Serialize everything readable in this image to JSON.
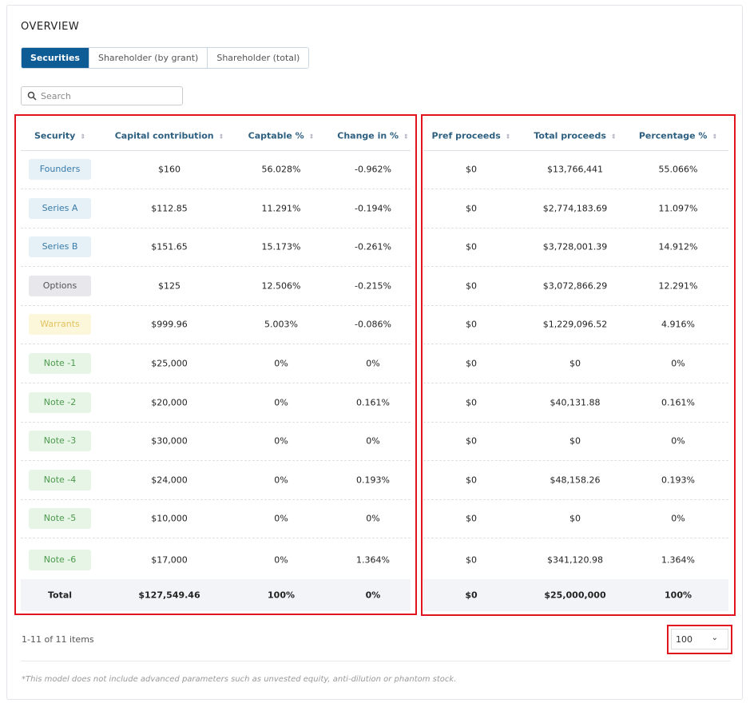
{
  "title": "OVERVIEW",
  "tabs": [
    "Securities",
    "Shareholder (by grant)",
    "Shareholder (total)"
  ],
  "search_placeholder": "Search",
  "table": {
    "columns": [
      "Security",
      "Capital contribution",
      "Captable %",
      "Change in %",
      "Pref proceeds",
      "Total proceeds",
      "Percentage %"
    ],
    "rows": [
      [
        "Founders",
        "$160",
        "56.028%",
        "-0.962%",
        "$0",
        "$13,766,441",
        "55.066%"
      ],
      [
        "Series A",
        "$112.85",
        "11.291%",
        "-0.194%",
        "$0",
        "$2,774,183.69",
        "11.097%"
      ],
      [
        "Series B",
        "$151.65",
        "15.173%",
        "-0.261%",
        "$0",
        "$3,728,001.39",
        "14.912%"
      ],
      [
        "Options",
        "$125",
        "12.506%",
        "-0.215%",
        "$0",
        "$3,072,866.29",
        "12.291%"
      ],
      [
        "Warrants",
        "$999.96",
        "5.003%",
        "-0.086%",
        "$0",
        "$1,229,096.52",
        "4.916%"
      ],
      [
        "Note -1",
        "$25,000",
        "0%",
        "0%",
        "$0",
        "$0",
        "0%"
      ],
      [
        "Note -2",
        "$20,000",
        "0%",
        "0.161%",
        "$0",
        "$40,131.88",
        "0.161%"
      ],
      [
        "Note -3",
        "$30,000",
        "0%",
        "0%",
        "$0",
        "$0",
        "0%"
      ],
      [
        "Note -4",
        "$24,000",
        "0%",
        "0.193%",
        "$0",
        "$48,158.26",
        "0.193%"
      ],
      [
        "Note -5",
        "$10,000",
        "0%",
        "0%",
        "$0",
        "$0",
        "0%"
      ],
      [
        "Note -6",
        "$17,000",
        "0%",
        "1.364%",
        "$0",
        "$341,120.98",
        "1.364%"
      ]
    ],
    "total": [
      "Total",
      "$127,549.46",
      "100%",
      "0%",
      "$0",
      "$25,000,000",
      "100%"
    ]
  },
  "pagination": "1-11 of 11 items",
  "page_size": "100",
  "footnote": "*This model does not include advanced parameters such as unvested equity, anti-dilution or phantom stock."
}
